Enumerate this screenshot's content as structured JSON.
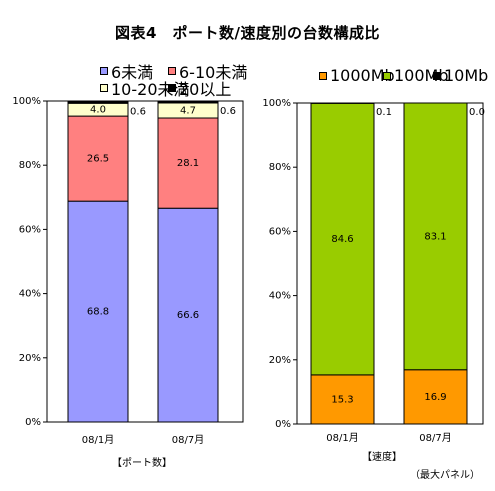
{
  "title": "図表4　ポート数/速度別の台数構成比",
  "note": "（最大パネル）",
  "chart_data": [
    {
      "type": "bar",
      "stacked": true,
      "categories": [
        "08/1月",
        "08/7月"
      ],
      "ylim": [
        0,
        100
      ],
      "yticks": [
        "0%",
        "20%",
        "40%",
        "60%",
        "80%",
        "100%"
      ],
      "xlabel": "【ポート数】",
      "legend": "top",
      "series": [
        {
          "name": "6未満",
          "values": [
            68.8,
            66.6
          ],
          "labels": [
            "68.8",
            "66.6"
          ],
          "color": "#9999ff"
        },
        {
          "name": "6-10未満",
          "values": [
            26.5,
            28.1
          ],
          "labels": [
            "26.5",
            "28.1"
          ],
          "color": "#ff8080"
        },
        {
          "name": "10-20未満",
          "values": [
            4.0,
            4.7
          ],
          "labels": [
            "4.0",
            "4.7"
          ],
          "color": "#ffffcc"
        },
        {
          "name": "20以上",
          "values": [
            0.6,
            0.6
          ],
          "labels": [
            "0.6",
            "0.6"
          ],
          "color": "#000000"
        }
      ]
    },
    {
      "type": "bar",
      "stacked": true,
      "categories": [
        "08/1月",
        "08/7月"
      ],
      "ylim": [
        0,
        100
      ],
      "yticks": [
        "0%",
        "20%",
        "40%",
        "60%",
        "80%",
        "100%"
      ],
      "xlabel": "【速度】",
      "legend": "top",
      "series": [
        {
          "name": "1000Mb",
          "values": [
            15.3,
            16.9
          ],
          "labels": [
            "15.3",
            "16.9"
          ],
          "color": "#ff9900"
        },
        {
          "name": "100Mb",
          "values": [
            84.6,
            83.1
          ],
          "labels": [
            "84.6",
            "83.1"
          ],
          "color": "#99cc00"
        },
        {
          "name": "10Mb",
          "values": [
            0.1,
            0.0
          ],
          "labels": [
            "0.1",
            "0.0"
          ],
          "color": "#000000"
        }
      ]
    }
  ]
}
